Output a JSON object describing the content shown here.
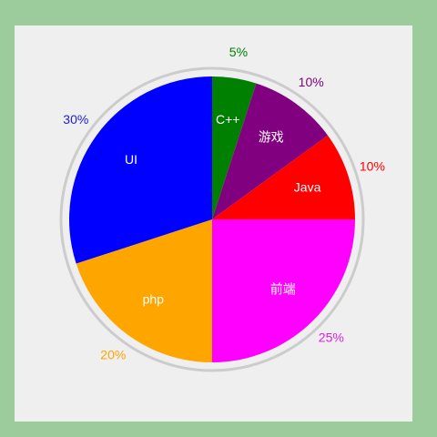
{
  "chart_data": {
    "type": "pie",
    "title": "",
    "start": "12 o'clock",
    "direction": "clockwise",
    "slices": [
      {
        "label": "C++",
        "value": 5,
        "percent_label": "5%",
        "color": "#008000",
        "pct_color": "#008000"
      },
      {
        "label": "游戏",
        "value": 10,
        "percent_label": "10%",
        "color": "#800080",
        "pct_color": "#800080"
      },
      {
        "label": "Java",
        "value": 10,
        "percent_label": "10%",
        "color": "#ff0000",
        "pct_color": "#ff0000"
      },
      {
        "label": "前端",
        "value": 25,
        "percent_label": "25%",
        "color": "#ff00ff",
        "pct_color": "#e020e0"
      },
      {
        "label": "php",
        "value": 20,
        "percent_label": "20%",
        "color": "#ffa500",
        "pct_color": "#ffa500"
      },
      {
        "label": "UI",
        "value": 30,
        "percent_label": "30%",
        "color": "#0000ff",
        "pct_color": "#2020d0"
      }
    ]
  },
  "colors": {
    "page_background": "#9ccc9b",
    "panel_background": "#efefef",
    "ring": "#cccccc",
    "inner_label": "#ffffff"
  }
}
